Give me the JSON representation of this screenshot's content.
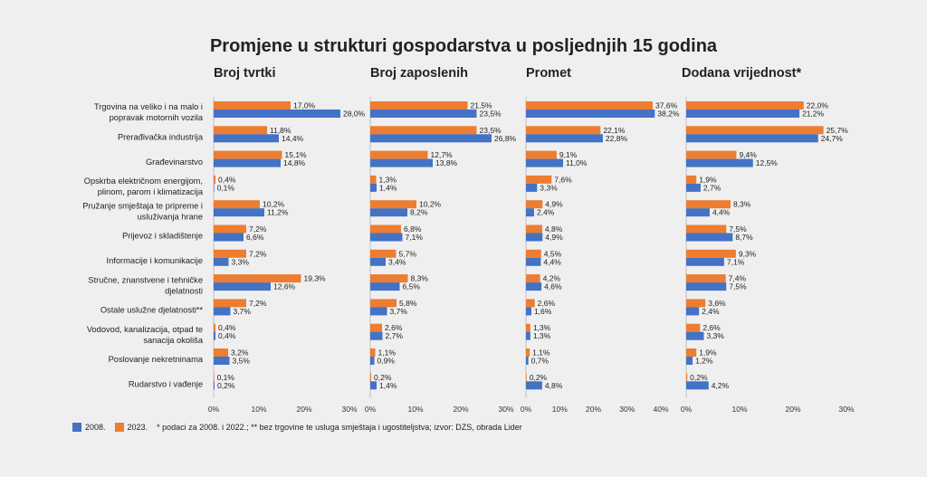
{
  "title": "Promjene u strukturi gospodarstva u posljednjih 15 godina",
  "chart_data": {
    "type": "bar",
    "orientation": "horizontal",
    "grid": false,
    "categories": [
      "Trgovina na veliko i na malo i popravak motornih vozila",
      "Prerađivačka industrija",
      "Građevinarstvo",
      "Opskrba električnom energijom, plinom, parom i klimatizacija",
      "Pružanje smještaja te pripreme i usluživanja hrane",
      "Prijevoz i skladištenje",
      "Informacije i komunikacije",
      "Stručne, znanstvene i tehničke djelatnosti",
      "Ostale uslužne djelatnosti**",
      "Vodovod, kanalizacija, otpad te sanacija okoliša",
      "Poslovanje nekretninama",
      "Rudarstvo i vađenje"
    ],
    "category_lines": [
      [
        "Trgovina na veliko i na malo i",
        "popravak motornih vozila"
      ],
      [
        "Prerađivačka industrija"
      ],
      [
        "Građevinarstvo"
      ],
      [
        "Opskrba električnom energijom,",
        "plinom, parom i klimatizacija"
      ],
      [
        "Pružanje smještaja te pripreme i",
        "usluživanja hrane"
      ],
      [
        "Prijevoz i skladištenje"
      ],
      [
        "Informacije i komunikacije"
      ],
      [
        "Stručne, znanstvene i tehničke",
        "djelatnosti"
      ],
      [
        "Ostale uslužne djelatnosti**"
      ],
      [
        "Vodovod, kanalizacija, otpad te",
        "sanacija okoliša"
      ],
      [
        "Poslovanje nekretninama"
      ],
      [
        "Rudarstvo i vađenje"
      ]
    ],
    "series_colors": {
      "2023.": "#ed7d31",
      "2008.": "#4472c4"
    },
    "panels": [
      {
        "title": "Broj tvrtki",
        "xlim": [
          0,
          30
        ],
        "ticks": [
          "0%",
          "10%",
          "20%",
          "30%"
        ],
        "series": [
          {
            "name": "2023.",
            "values": [
              17.0,
              11.8,
              15.1,
              0.4,
              10.2,
              7.2,
              7.2,
              19.3,
              7.2,
              0.4,
              3.2,
              0.1
            ],
            "labels": [
              "17,0%",
              "11,8%",
              "15,1%",
              "0,4%",
              "10,2%",
              "7,2%",
              "7,2%",
              "19,3%",
              "7,2%",
              "0,4%",
              "3,2%",
              "0,1%"
            ]
          },
          {
            "name": "2008.",
            "values": [
              28.0,
              14.4,
              14.8,
              0.1,
              11.2,
              6.6,
              3.3,
              12.6,
              3.7,
              0.4,
              3.5,
              0.2
            ],
            "labels": [
              "28,0%",
              "14,4%",
              "14,8%",
              "0,1%",
              "11,2%",
              "6,6%",
              "3,3%",
              "12,6%",
              "3,7%",
              "0,4%",
              "3,5%",
              "0,2%"
            ]
          }
        ]
      },
      {
        "title": "Broj zaposlenih",
        "xlim": [
          0,
          30
        ],
        "ticks": [
          "0%",
          "10%",
          "20%",
          "30%"
        ],
        "series": [
          {
            "name": "2023.",
            "values": [
              21.5,
              23.5,
              12.7,
              1.3,
              10.2,
              6.8,
              5.7,
              8.3,
              5.8,
              2.6,
              1.1,
              0.2
            ],
            "labels": [
              "21,5%",
              "23,5%",
              "12,7%",
              "1,3%",
              "10,2%",
              "6,8%",
              "5,7%",
              "8,3%",
              "5,8%",
              "2,6%",
              "1,1%",
              "0,2%"
            ]
          },
          {
            "name": "2008.",
            "values": [
              23.5,
              26.8,
              13.8,
              1.4,
              8.2,
              7.1,
              3.4,
              6.5,
              3.7,
              2.7,
              0.9,
              1.4
            ],
            "labels": [
              "23,5%",
              "26,8%",
              "13,8%",
              "1,4%",
              "8,2%",
              "7,1%",
              "3,4%",
              "6,5%",
              "3,7%",
              "2,7%",
              "0,9%",
              "1,4%"
            ]
          }
        ]
      },
      {
        "title": "Promet",
        "xlim": [
          0,
          40
        ],
        "ticks": [
          "0%",
          "10%",
          "20%",
          "30%",
          "40%"
        ],
        "series": [
          {
            "name": "2023.",
            "values": [
              37.6,
              22.1,
              9.1,
              7.6,
              4.9,
              4.8,
              4.5,
              4.2,
              2.6,
              1.3,
              1.1,
              0.2
            ],
            "labels": [
              "37,6%",
              "22,1%",
              "9,1%",
              "7,6%",
              "4,9%",
              "4,8%",
              "4,5%",
              "4,2%",
              "2,6%",
              "1,3%",
              "1,1%",
              "0,2%"
            ]
          },
          {
            "name": "2008.",
            "values": [
              38.2,
              22.8,
              11.0,
              3.3,
              2.4,
              4.9,
              4.4,
              4.6,
              1.6,
              1.3,
              0.7,
              4.8
            ],
            "labels": [
              "38,2%",
              "22,8%",
              "11,0%",
              "3,3%",
              "2,4%",
              "4,9%",
              "4,4%",
              "4,6%",
              "1,6%",
              "1,3%",
              "0,7%",
              "4,8%"
            ]
          }
        ]
      },
      {
        "title": "Dodana vrijednost*",
        "xlim": [
          0,
          30
        ],
        "ticks": [
          "0%",
          "10%",
          "20%",
          "30%"
        ],
        "series": [
          {
            "name": "2023.",
            "values": [
              22.0,
              25.7,
              9.4,
              1.9,
              8.3,
              7.5,
              9.3,
              7.4,
              3.6,
              2.6,
              1.9,
              0.2
            ],
            "labels": [
              "22,0%",
              "25,7%",
              "9,4%",
              "1,9%",
              "8,3%",
              "7,5%",
              "9,3%",
              "7,4%",
              "3,6%",
              "2,6%",
              "1,9%",
              "0,2%"
            ]
          },
          {
            "name": "2008.",
            "values": [
              21.2,
              24.7,
              12.5,
              2.7,
              4.4,
              8.7,
              7.1,
              7.5,
              2.4,
              3.3,
              1.2,
              4.2
            ],
            "labels": [
              "21,2%",
              "24,7%",
              "12,5%",
              "2,7%",
              "4,4%",
              "8,7%",
              "7,1%",
              "7,5%",
              "2,4%",
              "3,3%",
              "1,2%",
              "4,2%"
            ]
          }
        ]
      }
    ]
  },
  "legend": {
    "items": [
      {
        "label": "2008.",
        "color": "#4472c4"
      },
      {
        "label": "2023.",
        "color": "#ed7d31"
      }
    ],
    "note": "* podaci za 2008. i 2022.; ** bez trgovine te usluga smještaja i ugostiteljstva; izvor: DZS, obrada Lider"
  }
}
